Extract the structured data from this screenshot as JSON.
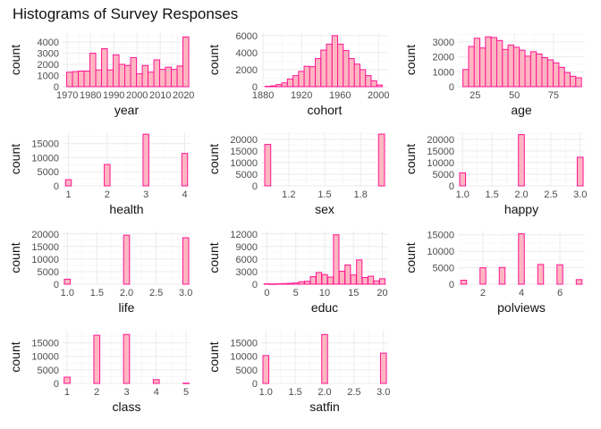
{
  "figure_title": "Histograms of Survey Responses",
  "colors": {
    "bar_fill": "#ffb6c1",
    "bar_outline": "#ff1493",
    "grid": "#ebebeb",
    "background": "#ffffff"
  },
  "chart_data": [
    {
      "type": "bar",
      "id": "year",
      "xlabel": "year",
      "ylabel": "count",
      "xlim": [
        1968,
        2023
      ],
      "ylim": [
        0,
        4800
      ],
      "xticks": [
        1970,
        1980,
        1990,
        2000,
        2010,
        2020
      ],
      "yticks": [
        0,
        1000,
        2000,
        3000,
        4000
      ],
      "bin_width": 2.5,
      "bins_x": [
        1971,
        1973.5,
        1976,
        1978.5,
        1981,
        1983.5,
        1986,
        1988.5,
        1991,
        1993.5,
        1996,
        1998.5,
        2001,
        2003.5,
        2006,
        2008.5,
        2011,
        2013.5,
        2016,
        2018.5,
        2021
      ],
      "counts": [
        1300,
        1350,
        1400,
        1400,
        3000,
        1500,
        3400,
        1500,
        2850,
        2000,
        1900,
        2600,
        1150,
        1900,
        1300,
        2400,
        1550,
        1750,
        1550,
        1850,
        4450
      ]
    },
    {
      "type": "bar",
      "id": "cohort",
      "xlabel": "cohort",
      "ylabel": "count",
      "xlim": [
        1878,
        2010
      ],
      "ylim": [
        0,
        6300
      ],
      "xticks": [
        1880,
        1920,
        1960,
        2000
      ],
      "yticks": [
        0,
        2000,
        4000,
        6000
      ],
      "bin_width": 5.8,
      "bins_x": [
        1885,
        1890.8,
        1896.6,
        1902.4,
        1908.2,
        1914,
        1919.8,
        1925.6,
        1931.4,
        1937.2,
        1943,
        1948.8,
        1954.6,
        1960.4,
        1966.2,
        1972,
        1977.8,
        1983.6,
        1989.4,
        1995.2,
        2001
      ],
      "counts": [
        50,
        100,
        250,
        450,
        900,
        1300,
        1800,
        2400,
        2350,
        3300,
        4300,
        5000,
        6000,
        5000,
        4250,
        3300,
        2650,
        2000,
        1300,
        700,
        200
      ]
    },
    {
      "type": "bar",
      "id": "age",
      "xlabel": "age",
      "ylabel": "count",
      "xlim": [
        14,
        95
      ],
      "ylim": [
        0,
        3600
      ],
      "xticks": [
        25,
        50,
        75
      ],
      "yticks": [
        0,
        1000,
        2000,
        3000
      ],
      "bin_width": 3.6,
      "bins_x": [
        19,
        22.6,
        26.2,
        29.8,
        33.4,
        37,
        40.6,
        44.2,
        47.8,
        51.4,
        55,
        58.6,
        62.2,
        65.8,
        69.4,
        73,
        76.6,
        80.2,
        83.8,
        87.4,
        91
      ],
      "counts": [
        1150,
        2700,
        3250,
        2600,
        3350,
        3300,
        3100,
        2500,
        2800,
        2650,
        2450,
        2050,
        2350,
        2200,
        1950,
        1800,
        1600,
        1300,
        950,
        700,
        600
      ]
    },
    {
      "type": "bar",
      "id": "health",
      "xlabel": "health",
      "ylabel": "count",
      "xlim": [
        0.85,
        4.15
      ],
      "ylim": [
        0,
        19000
      ],
      "xticks": [
        1,
        2,
        3,
        4
      ],
      "yticks": [
        0,
        5000,
        10000,
        15000
      ],
      "bin_width": 0.15,
      "bins_x": [
        1,
        2,
        3,
        4
      ],
      "counts": [
        2200,
        7600,
        18300,
        11500
      ]
    },
    {
      "type": "bar",
      "id": "sex",
      "xlabel": "sex",
      "ylabel": "count",
      "xlim": [
        0.97,
        2.03
      ],
      "ylim": [
        0,
        23000
      ],
      "xticks": [
        1.2,
        1.5,
        1.8
      ],
      "yticks": [
        0,
        5000,
        10000,
        15000,
        20000
      ],
      "bin_width": 0.05,
      "bins_x": [
        1.025,
        1.975
      ],
      "counts": [
        17800,
        22200
      ]
    },
    {
      "type": "bar",
      "id": "happy",
      "xlabel": "happy",
      "ylabel": "count",
      "xlim": [
        0.92,
        3.08
      ],
      "ylim": [
        0,
        23000
      ],
      "xticks": [
        1.0,
        1.5,
        2.0,
        2.5,
        3.0
      ],
      "yticks": [
        0,
        5000,
        10000,
        15000,
        20000
      ],
      "tick_decimals": 1,
      "bin_width": 0.1,
      "bins_x": [
        1,
        2,
        3
      ],
      "counts": [
        5600,
        22000,
        12300
      ]
    },
    {
      "type": "bar",
      "id": "life",
      "xlabel": "life",
      "ylabel": "count",
      "xlim": [
        0.92,
        3.08
      ],
      "ylim": [
        0,
        21000
      ],
      "xticks": [
        1.0,
        1.5,
        2.0,
        2.5,
        3.0
      ],
      "yticks": [
        0,
        5000,
        10000,
        15000,
        20000
      ],
      "tick_decimals": 1,
      "bin_width": 0.1,
      "bins_x": [
        1,
        2,
        3
      ],
      "counts": [
        2000,
        19500,
        18500
      ]
    },
    {
      "type": "bar",
      "id": "educ",
      "xlabel": "educ",
      "ylabel": "count",
      "xlim": [
        -1,
        21
      ],
      "ylim": [
        0,
        12600
      ],
      "xticks": [
        0,
        5,
        10,
        15,
        20
      ],
      "yticks": [
        0,
        3000,
        6000,
        9000,
        12000
      ],
      "bin_width": 0.95,
      "bins_x": [
        0,
        1,
        2,
        3,
        4,
        5,
        6,
        7,
        8,
        9,
        10,
        11,
        12,
        13,
        14,
        15,
        16,
        17,
        18,
        19,
        20
      ],
      "counts": [
        100,
        50,
        100,
        150,
        200,
        300,
        600,
        700,
        1800,
        2800,
        2300,
        1700,
        11800,
        3100,
        4600,
        2200,
        5800,
        1600,
        1900,
        800,
        1300
      ]
    },
    {
      "type": "bar",
      "id": "polviews",
      "xlabel": "polviews",
      "ylabel": "count",
      "xlim": [
        0.7,
        7.3
      ],
      "ylim": [
        0,
        16000
      ],
      "xticks": [
        2,
        4,
        6
      ],
      "yticks": [
        0,
        5000,
        10000,
        15000
      ],
      "bin_width": 0.3,
      "bins_x": [
        1,
        2,
        3,
        4,
        5,
        6,
        7
      ],
      "counts": [
        1200,
        5000,
        5100,
        15300,
        6000,
        5900,
        1400
      ]
    },
    {
      "type": "bar",
      "id": "class",
      "xlabel": "class",
      "ylabel": "count",
      "xlim": [
        0.85,
        5.15
      ],
      "ylim": [
        0,
        19500
      ],
      "xticks": [
        1,
        2,
        3,
        4,
        5
      ],
      "yticks": [
        0,
        5000,
        10000,
        15000
      ],
      "bin_width": 0.2,
      "bins_x": [
        1,
        2,
        3,
        4,
        5
      ],
      "counts": [
        2300,
        17800,
        18100,
        1400,
        100
      ]
    },
    {
      "type": "bar",
      "id": "satfin",
      "xlabel": "satfin",
      "ylabel": "count",
      "xlim": [
        0.92,
        3.08
      ],
      "ylim": [
        0,
        19500
      ],
      "xticks": [
        1.0,
        1.5,
        2.0,
        2.5,
        3.0
      ],
      "yticks": [
        0,
        5000,
        10000,
        15000
      ],
      "tick_decimals": 1,
      "bin_width": 0.1,
      "bins_x": [
        1,
        2,
        3
      ],
      "counts": [
        10300,
        18100,
        11200
      ]
    }
  ]
}
